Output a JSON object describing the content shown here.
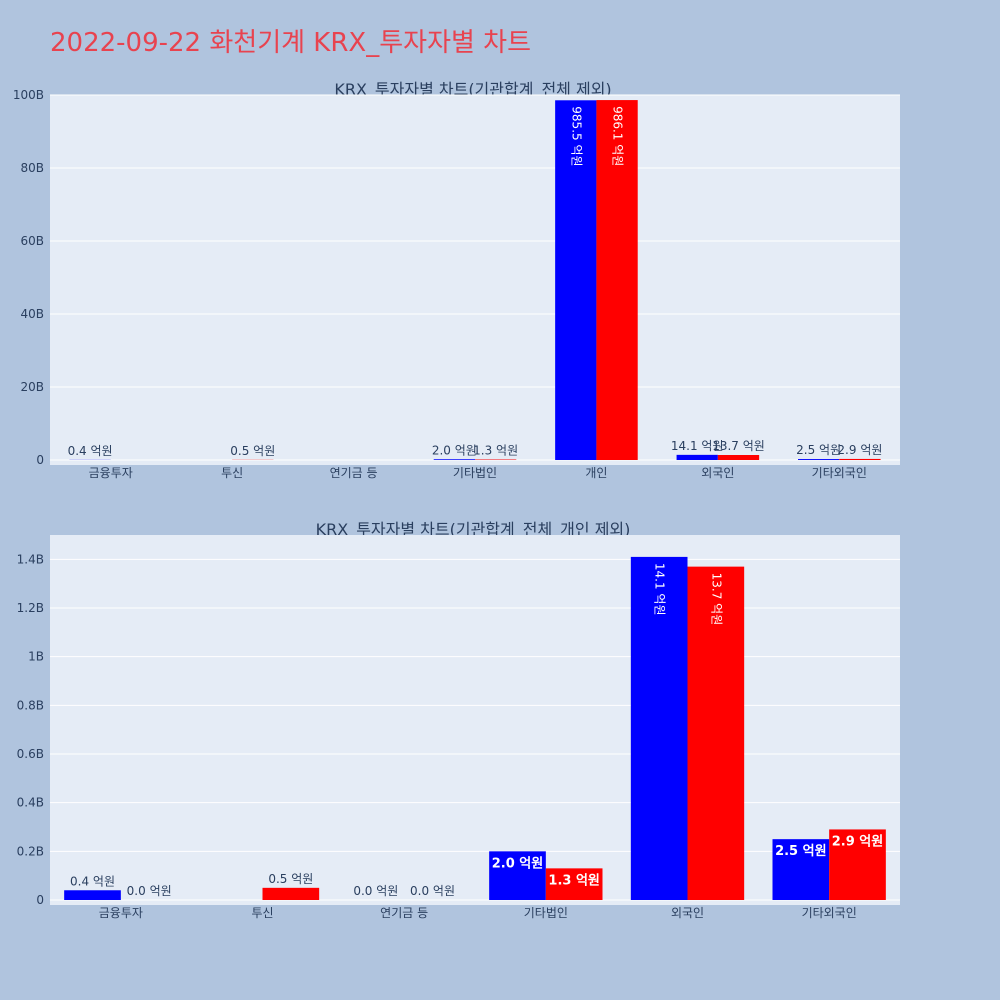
{
  "page": {
    "title": "2022-09-22 화천기계 KRX_투자자별 차트"
  },
  "chart_data": [
    {
      "type": "bar",
      "title": "KRX_투자자별 차트(기관합계_전체 제외)",
      "categories": [
        "금융투자",
        "투신",
        "연기금 등",
        "기타법인",
        "개인",
        "외국인",
        "기타외국인"
      ],
      "ylim": [
        0,
        100000000000
      ],
      "yticks": [
        0,
        20000000000,
        40000000000,
        60000000000,
        80000000000,
        100000000000
      ],
      "ytick_labels": [
        "0",
        "20B",
        "40B",
        "60B",
        "80B",
        "100B"
      ],
      "grid": true,
      "colors": [
        "#0000ff",
        "#ff0000"
      ],
      "series": [
        {
          "values": [
            40000000,
            0,
            0,
            200000000,
            98550000000,
            1410000000,
            250000000
          ],
          "labels": [
            "0.4 억원",
            "",
            "",
            "2.0 억원",
            "985.5 억원",
            "14.1 억원",
            "2.5 억원"
          ]
        },
        {
          "values": [
            0,
            50000000,
            0,
            130000000,
            98610000000,
            1370000000,
            290000000
          ],
          "labels": [
            "",
            "0.5 억원",
            "",
            "1.3 억원",
            "986.1 억원",
            "13.7 억원",
            "2.9 억원"
          ]
        }
      ]
    },
    {
      "type": "bar",
      "title": "KRX_투자자별 차트(기관합계_전체_개인 제외)",
      "categories": [
        "금융투자",
        "투신",
        "연기금 등",
        "기타법인",
        "외국인",
        "기타외국인"
      ],
      "ylim": [
        0,
        1500000000
      ],
      "yticks": [
        0,
        200000000,
        400000000,
        600000000,
        800000000,
        1000000000,
        1200000000,
        1400000000
      ],
      "ytick_labels": [
        "0",
        "0.2B",
        "0.4B",
        "0.6B",
        "0.8B",
        "1B",
        "1.2B",
        "1.4B"
      ],
      "grid": true,
      "colors": [
        "#0000ff",
        "#ff0000"
      ],
      "series": [
        {
          "values": [
            40000000,
            0,
            0,
            200000000,
            1410000000,
            250000000
          ],
          "labels": [
            "0.4 억원",
            "",
            "0.0 억원",
            "2.0 억원",
            "14.1 억원",
            "2.5 억원"
          ]
        },
        {
          "values": [
            0,
            50000000,
            0,
            130000000,
            1370000000,
            290000000
          ],
          "labels": [
            "0.0 억원",
            "0.5 억원",
            "0.0 억원",
            "1.3 억원",
            "13.7 억원",
            "2.9 억원"
          ]
        }
      ]
    }
  ]
}
